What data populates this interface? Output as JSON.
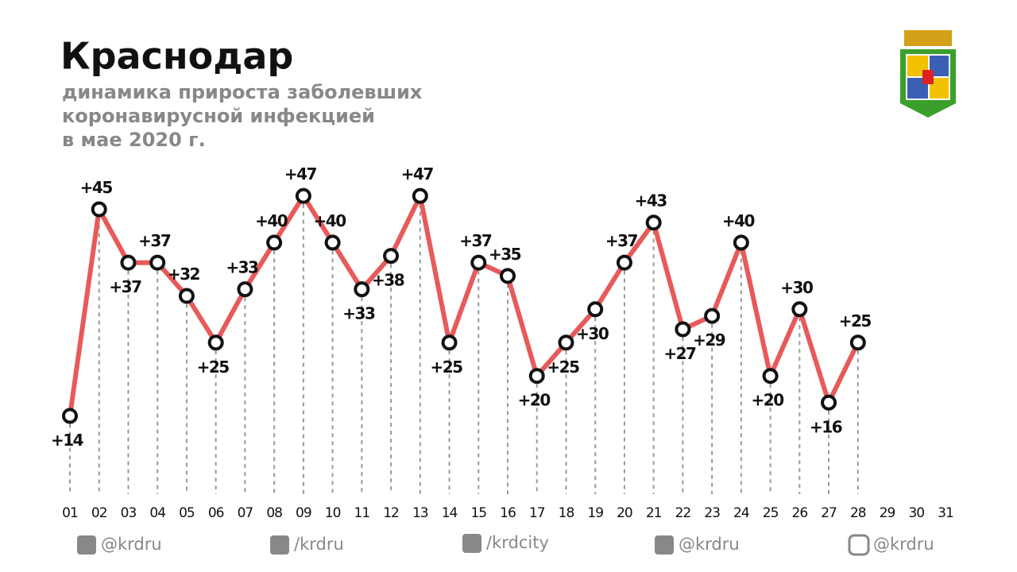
{
  "chart_data": {
    "type": "line",
    "title": "Краснодар",
    "subtitle": [
      "динамика прироста заболевших",
      "коронавирусной инфекцией",
      "в мае 2020 г."
    ],
    "categories": [
      "01",
      "02",
      "03",
      "04",
      "05",
      "06",
      "07",
      "08",
      "09",
      "10",
      "11",
      "12",
      "13",
      "14",
      "15",
      "16",
      "17",
      "18",
      "19",
      "20",
      "21",
      "22",
      "23",
      "24",
      "25",
      "26",
      "27",
      "28",
      "29",
      "30",
      "31"
    ],
    "series": [
      {
        "color": "#e85a5a",
        "values": [
          14,
          45,
          37,
          37,
          32,
          25,
          33,
          40,
          47,
          40,
          33,
          38,
          47,
          25,
          37,
          35,
          20,
          25,
          30,
          37,
          43,
          27,
          29,
          40,
          20,
          30,
          16,
          25,
          null,
          null,
          null
        ],
        "value_labels": [
          "+14",
          "+45",
          "+37",
          "+37",
          "+32",
          "+25",
          "+33",
          "+40",
          "+47",
          "+40",
          "+33",
          "+38",
          "+47",
          "+25",
          "+37",
          "+35",
          "+20",
          "+25",
          "+30",
          "+37",
          "+43",
          "+27",
          "+29",
          "+40",
          "+20",
          "+30",
          "+16",
          "+25",
          null,
          null,
          null
        ]
      }
    ]
  },
  "footer": [
    "@krdru",
    "/krdru",
    "/krdcity",
    "@krdru",
    "@krdru"
  ]
}
